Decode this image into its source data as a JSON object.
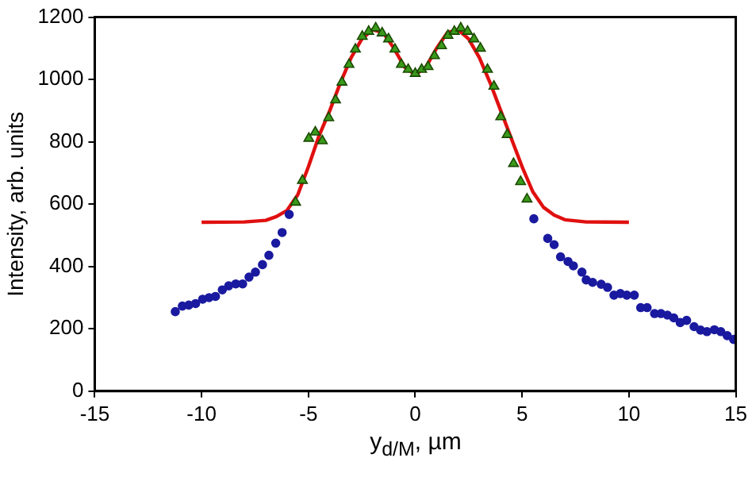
{
  "chart_data": {
    "type": "scatter",
    "xlabel": "y$_{d/M}$, µm",
    "ylabel": "Intensity, arb. units",
    "xlim": [
      -15,
      15
    ],
    "xticks": [
      -15,
      -10,
      -5,
      0,
      5,
      10,
      15
    ],
    "ylim": [
      0,
      1200
    ],
    "yticks": [
      0,
      200,
      400,
      600,
      800,
      1000,
      1200
    ],
    "grid": false,
    "legend": false,
    "series": [
      {
        "marker": "circle",
        "color": "#1a1aa0",
        "x": [
          -11.23,
          -10.9,
          -10.6,
          -10.28,
          -9.95,
          -9.65,
          -9.35,
          -9.03,
          -8.73,
          -8.4,
          -8.08,
          -7.78,
          -7.48,
          -7.15,
          -6.85,
          -6.53,
          -6.23,
          -5.9,
          5.55,
          6.2,
          6.5,
          6.8,
          7.15,
          7.4,
          7.8,
          8.0,
          8.3,
          8.7,
          9.0,
          9.3,
          9.6,
          9.9,
          10.25,
          10.55,
          10.85,
          11.2,
          11.5,
          11.8,
          12.1,
          12.4,
          12.7,
          13.05,
          13.35,
          13.65,
          14.0,
          14.3,
          14.6,
          14.9
        ],
        "values": [
          255,
          273,
          276,
          281,
          295,
          300,
          304,
          325,
          338,
          344,
          344,
          366,
          382,
          406,
          436,
          475,
          509,
          567,
          553,
          490,
          470,
          431,
          416,
          402,
          382,
          357,
          349,
          343,
          333,
          308,
          313,
          308,
          308,
          268,
          268,
          249,
          249,
          244,
          235,
          220,
          227,
          207,
          196,
          191,
          197,
          191,
          178,
          166
        ]
      },
      {
        "type": "line",
        "marker": "none",
        "color": "#e01010",
        "x": [
          -10,
          -8,
          -7,
          -6.5,
          -6,
          -5.5,
          -5,
          -4.5,
          -4,
          -3.5,
          -3,
          -2.5,
          -2,
          -1.5,
          -1,
          -0.5,
          0,
          0.5,
          1,
          1.5,
          2,
          2.5,
          3,
          3.5,
          4,
          4.5,
          5,
          5.5,
          6,
          6.5,
          7,
          8,
          10
        ],
        "values": [
          542,
          543,
          548,
          560,
          580,
          630,
          720,
          820,
          900,
          990,
          1070,
          1130,
          1160,
          1150,
          1100,
          1040,
          1015,
          1040,
          1100,
          1150,
          1160,
          1130,
          1070,
          990,
          900,
          810,
          720,
          640,
          590,
          565,
          550,
          543,
          542
        ]
      },
      {
        "marker": "triangle",
        "color": "#3a9a1a",
        "x": [
          -5.6,
          -5.28,
          -4.98,
          -4.68,
          -4.35,
          -4.05,
          -3.73,
          -3.43,
          -3.1,
          -2.8,
          -2.48,
          -2.18,
          -1.85,
          -1.55,
          -1.25,
          -0.95,
          -0.65,
          -0.33,
          0,
          0.3,
          0.6,
          0.9,
          1.23,
          1.53,
          1.83,
          2.13,
          2.45,
          2.75,
          3.05,
          3.38,
          3.68,
          4.0,
          4.3,
          4.6,
          4.93,
          5.23
        ],
        "values": [
          606,
          676,
          811,
          831,
          803,
          877,
          934,
          991,
          1048,
          1097,
          1138,
          1154,
          1165,
          1149,
          1130,
          1097,
          1048,
          1032,
          1019,
          1032,
          1041,
          1076,
          1108,
          1141,
          1154,
          1165,
          1154,
          1130,
          1100,
          1032,
          978,
          880,
          823,
          730,
          672,
          616
        ]
      }
    ]
  }
}
